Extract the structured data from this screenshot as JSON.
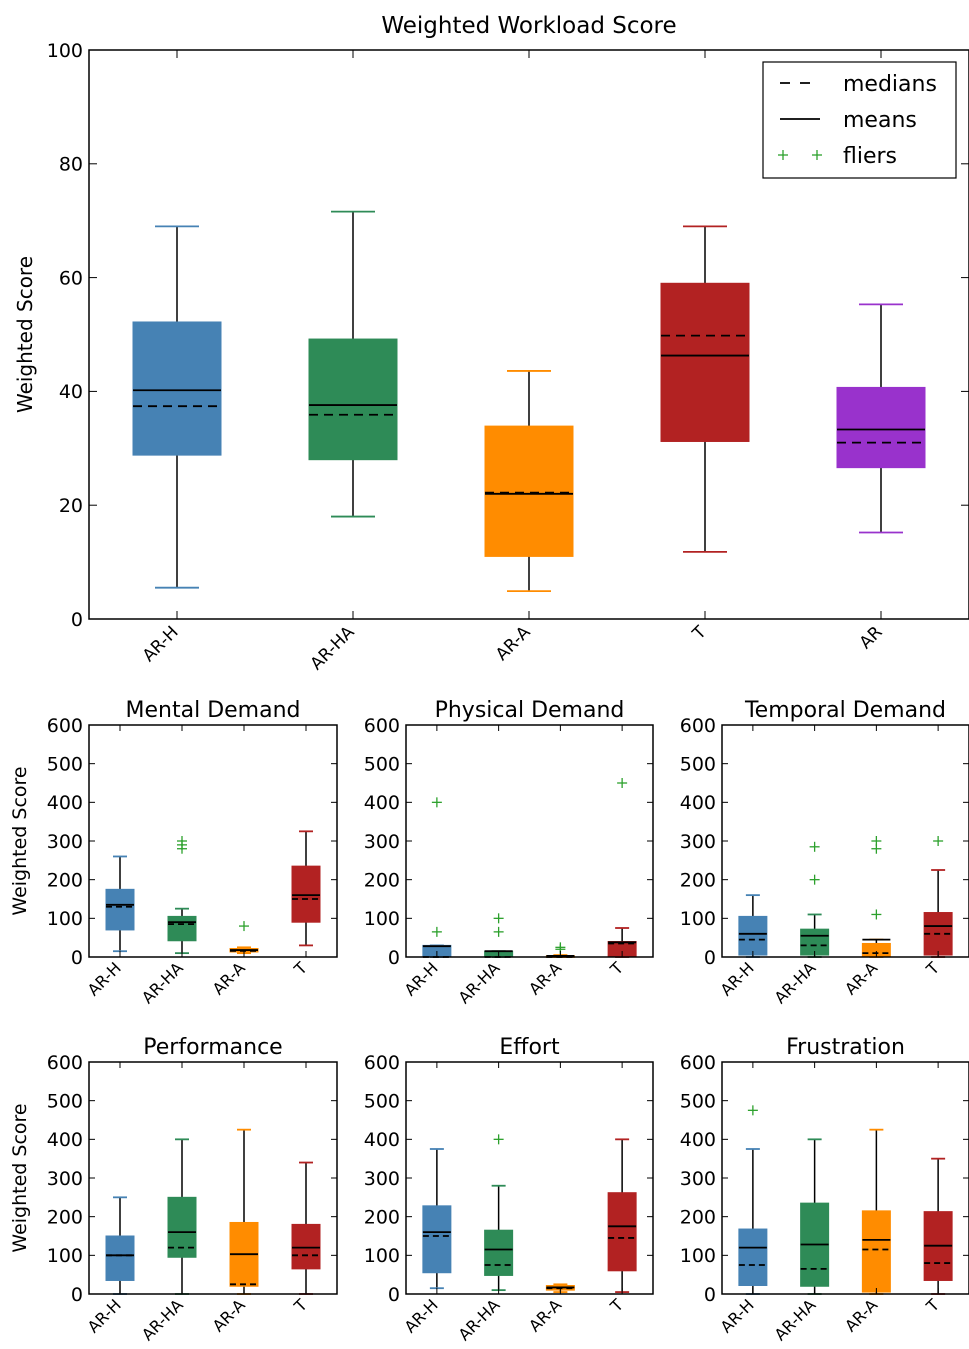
{
  "chart_data": [
    {
      "type": "box",
      "title": "Weighted Workload Score",
      "ylabel": "Weighted Score",
      "xlabel": "",
      "ylim": [
        0,
        100
      ],
      "yticks": [
        0,
        20,
        40,
        60,
        80,
        100
      ],
      "legend": {
        "placement": "top-right",
        "entries": [
          {
            "label": "medians",
            "style": "dashed"
          },
          {
            "label": "means",
            "style": "solid"
          },
          {
            "label": "fliers",
            "style": "plus"
          }
        ]
      },
      "categories": [
        "AR-H",
        "AR-HA",
        "AR-A",
        "T",
        "AR"
      ],
      "colors": [
        "#4682b4",
        "#2e8b57",
        "#ff8c00",
        "#b22222",
        "#9932cc"
      ],
      "boxes": [
        {
          "whislo": 5.5,
          "q1": 28.8,
          "median": 37.4,
          "mean": 40.2,
          "q3": 52.2,
          "whishi": 69.0,
          "fliers": []
        },
        {
          "whislo": 18.0,
          "q1": 28.0,
          "median": 35.9,
          "mean": 37.6,
          "q3": 49.2,
          "whishi": 71.6,
          "fliers": []
        },
        {
          "whislo": 4.9,
          "q1": 11.0,
          "median": 22.2,
          "mean": 22.0,
          "q3": 33.9,
          "whishi": 43.6,
          "fliers": []
        },
        {
          "whislo": 11.8,
          "q1": 31.2,
          "median": 49.8,
          "mean": 46.3,
          "q3": 59.0,
          "whishi": 69.0,
          "fliers": []
        },
        {
          "whislo": 15.2,
          "q1": 26.6,
          "median": 31.0,
          "mean": 33.3,
          "q3": 40.7,
          "whishi": 55.3,
          "fliers": []
        }
      ]
    },
    {
      "type": "box",
      "title": "Mental Demand",
      "ylabel": "Weighted Score",
      "ylim": [
        0,
        600
      ],
      "yticks": [
        0,
        100,
        200,
        300,
        400,
        500,
        600
      ],
      "categories": [
        "AR-H",
        "AR-HA",
        "AR-A",
        "T"
      ],
      "colors": [
        "#4682b4",
        "#2e8b57",
        "#ff8c00",
        "#b22222"
      ],
      "boxes": [
        {
          "whislo": 15,
          "q1": 70,
          "median": 130,
          "mean": 135,
          "q3": 175,
          "whishi": 260,
          "fliers": []
        },
        {
          "whislo": 10,
          "q1": 42,
          "median": 85,
          "mean": 90,
          "q3": 105,
          "whishi": 125,
          "fliers": [
            280,
            290,
            300
          ]
        },
        {
          "whislo": 10,
          "q1": 13,
          "median": 16,
          "mean": 18,
          "q3": 22,
          "whishi": 25,
          "fliers": [
            80
          ]
        },
        {
          "whislo": 30,
          "q1": 90,
          "median": 150,
          "mean": 160,
          "q3": 235,
          "whishi": 325,
          "fliers": []
        }
      ]
    },
    {
      "type": "box",
      "title": "Physical Demand",
      "ylim": [
        0,
        600
      ],
      "yticks": [
        0,
        100,
        200,
        300,
        400,
        500,
        600
      ],
      "categories": [
        "AR-H",
        "AR-HA",
        "AR-A",
        "T"
      ],
      "colors": [
        "#4682b4",
        "#2e8b57",
        "#ff8c00",
        "#b22222"
      ],
      "boxes": [
        {
          "whislo": 0,
          "q1": 0,
          "median": 0,
          "mean": 28,
          "q3": 30,
          "whishi": 30,
          "fliers": [
            65,
            400
          ]
        },
        {
          "whislo": 0,
          "q1": 0,
          "median": 0,
          "mean": 15,
          "q3": 15,
          "whishi": 15,
          "fliers": [
            65,
            100
          ]
        },
        {
          "whislo": 0,
          "q1": 0,
          "median": 0,
          "mean": 3,
          "q3": 3,
          "whishi": 5,
          "fliers": [
            20,
            25
          ]
        },
        {
          "whislo": 0,
          "q1": 0,
          "median": 35,
          "mean": 38,
          "q3": 40,
          "whishi": 75,
          "fliers": [
            450
          ]
        }
      ]
    },
    {
      "type": "box",
      "title": "Temporal Demand",
      "ylim": [
        0,
        600
      ],
      "yticks": [
        0,
        100,
        200,
        300,
        400,
        500,
        600
      ],
      "categories": [
        "AR-H",
        "AR-HA",
        "AR-A",
        "T"
      ],
      "colors": [
        "#4682b4",
        "#2e8b57",
        "#ff8c00",
        "#b22222"
      ],
      "boxes": [
        {
          "whislo": 0,
          "q1": 5,
          "median": 45,
          "mean": 60,
          "q3": 105,
          "whishi": 160,
          "fliers": []
        },
        {
          "whislo": 0,
          "q1": 5,
          "median": 30,
          "mean": 55,
          "q3": 72,
          "whishi": 110,
          "fliers": [
            200,
            285
          ]
        },
        {
          "whislo": 0,
          "q1": 0,
          "median": 10,
          "mean": 45,
          "q3": 35,
          "whishi": 45,
          "fliers": [
            110,
            280,
            300
          ]
        },
        {
          "whislo": 0,
          "q1": 5,
          "median": 60,
          "mean": 80,
          "q3": 115,
          "whishi": 225,
          "fliers": [
            300
          ]
        }
      ]
    },
    {
      "type": "box",
      "title": "Performance",
      "ylabel": "Weighted Score",
      "ylim": [
        0,
        600
      ],
      "yticks": [
        0,
        100,
        200,
        300,
        400,
        500,
        600
      ],
      "categories": [
        "AR-H",
        "AR-HA",
        "AR-A",
        "T"
      ],
      "colors": [
        "#4682b4",
        "#2e8b57",
        "#ff8c00",
        "#b22222"
      ],
      "boxes": [
        {
          "whislo": 0,
          "q1": 35,
          "median": 100,
          "mean": 100,
          "q3": 150,
          "whishi": 250,
          "fliers": []
        },
        {
          "whislo": 0,
          "q1": 95,
          "median": 120,
          "mean": 160,
          "q3": 250,
          "whishi": 400,
          "fliers": []
        },
        {
          "whislo": 0,
          "q1": 20,
          "median": 25,
          "mean": 103,
          "q3": 185,
          "whishi": 425,
          "fliers": []
        },
        {
          "whislo": 0,
          "q1": 65,
          "median": 100,
          "mean": 120,
          "q3": 180,
          "whishi": 340,
          "fliers": []
        }
      ]
    },
    {
      "type": "box",
      "title": "Effort",
      "ylim": [
        0,
        600
      ],
      "yticks": [
        0,
        100,
        200,
        300,
        400,
        500,
        600
      ],
      "categories": [
        "AR-H",
        "AR-HA",
        "AR-A",
        "T"
      ],
      "colors": [
        "#4682b4",
        "#2e8b57",
        "#ff8c00",
        "#b22222"
      ],
      "boxes": [
        {
          "whislo": 15,
          "q1": 55,
          "median": 150,
          "mean": 160,
          "q3": 228,
          "whishi": 375,
          "fliers": []
        },
        {
          "whislo": 10,
          "q1": 48,
          "median": 75,
          "mean": 115,
          "q3": 165,
          "whishi": 280,
          "fliers": [
            400
          ]
        },
        {
          "whislo": 5,
          "q1": 10,
          "median": 15,
          "mean": 17,
          "q3": 22,
          "whishi": 25,
          "fliers": []
        },
        {
          "whislo": 5,
          "q1": 60,
          "median": 145,
          "mean": 175,
          "q3": 262,
          "whishi": 400,
          "fliers": []
        }
      ]
    },
    {
      "type": "box",
      "title": "Frustration",
      "ylim": [
        0,
        600
      ],
      "yticks": [
        0,
        100,
        200,
        300,
        400,
        500,
        600
      ],
      "categories": [
        "AR-H",
        "AR-HA",
        "AR-A",
        "T"
      ],
      "colors": [
        "#4682b4",
        "#2e8b57",
        "#ff8c00",
        "#b22222"
      ],
      "boxes": [
        {
          "whislo": 0,
          "q1": 22,
          "median": 75,
          "mean": 120,
          "q3": 168,
          "whishi": 375,
          "fliers": [
            475
          ]
        },
        {
          "whislo": 0,
          "q1": 20,
          "median": 65,
          "mean": 128,
          "q3": 235,
          "whishi": 400,
          "fliers": []
        },
        {
          "whislo": 0,
          "q1": 5,
          "median": 115,
          "mean": 140,
          "q3": 215,
          "whishi": 425,
          "fliers": []
        },
        {
          "whislo": 0,
          "q1": 35,
          "median": 80,
          "mean": 125,
          "q3": 213,
          "whishi": 350,
          "fliers": []
        }
      ]
    }
  ]
}
